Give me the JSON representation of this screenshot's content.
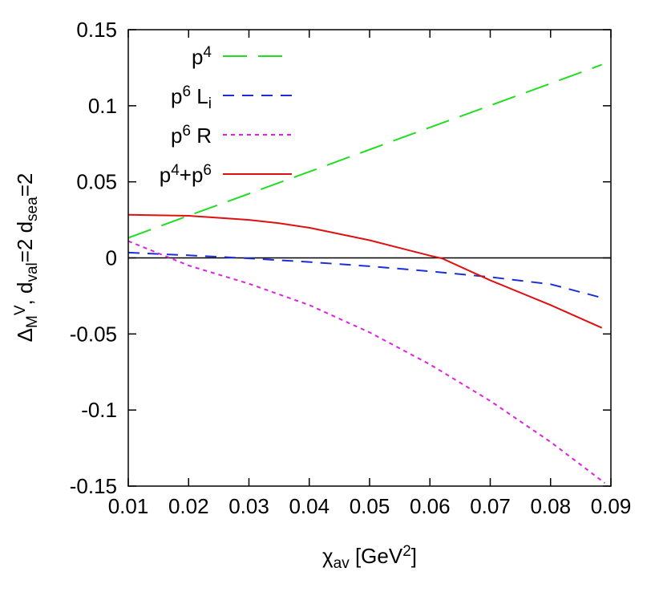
{
  "chart_data": {
    "type": "line",
    "xlabel": {
      "base": "χ",
      "sub": "av",
      "rest": " [GeV",
      "sup": "2",
      "end": "]"
    },
    "ylabel": {
      "parts": [
        {
          "t": "Δ",
          "s": ""
        },
        {
          "t": "M",
          "s": "sub"
        },
        {
          "t": "V",
          "s": "sup"
        },
        {
          "t": ", d",
          "s": ""
        },
        {
          "t": "val",
          "s": "sub"
        },
        {
          "t": "=2 d",
          "s": ""
        },
        {
          "t": "sea",
          "s": "sub"
        },
        {
          "t": "=2",
          "s": ""
        }
      ]
    },
    "xlim": [
      0.01,
      0.09
    ],
    "ylim": [
      -0.15,
      0.15
    ],
    "xticks": [
      "0.01",
      "0.02",
      "0.03",
      "0.04",
      "0.05",
      "0.06",
      "0.07",
      "0.08",
      "0.09"
    ],
    "yticks": [
      "0.15",
      "0.1",
      "0.05",
      "0",
      "-0.05",
      "-0.1",
      "-0.15"
    ],
    "zero_line": true,
    "grid": false,
    "legend_position": "top-left",
    "series": [
      {
        "name": [
          {
            "t": "p",
            "s": ""
          },
          {
            "t": "4",
            "s": "sup"
          }
        ],
        "color": "#22dd22",
        "dash": "long",
        "x": [
          0.01,
          0.02,
          0.03,
          0.04,
          0.05,
          0.06,
          0.07,
          0.08,
          0.0885
        ],
        "y": [
          0.0132,
          0.0278,
          0.0422,
          0.0566,
          0.0712,
          0.0858,
          0.1002,
          0.1146,
          0.127
        ]
      },
      {
        "name": [
          {
            "t": "p",
            "s": ""
          },
          {
            "t": "6",
            "s": "sup"
          },
          {
            "t": " L",
            "s": ""
          },
          {
            "t": "i",
            "s": "sub"
          }
        ],
        "color": "#1a2fd6",
        "dash": "medium",
        "x": [
          0.01,
          0.02,
          0.03,
          0.04,
          0.05,
          0.06,
          0.07,
          0.08,
          0.0885
        ],
        "y": [
          0.0035,
          0.0017,
          -0.0003,
          -0.0027,
          -0.0055,
          -0.0088,
          -0.0126,
          -0.0173,
          -0.0262
        ]
      },
      {
        "name": [
          {
            "t": "p",
            "s": ""
          },
          {
            "t": "6",
            "s": "sup"
          },
          {
            "t": " R",
            "s": ""
          }
        ],
        "color": "#e020e0",
        "dash": "short",
        "x": [
          0.01,
          0.02,
          0.03,
          0.04,
          0.05,
          0.06,
          0.07,
          0.08,
          0.089
        ],
        "y": [
          0.011,
          -0.005,
          -0.017,
          -0.031,
          -0.049,
          -0.07,
          -0.094,
          -0.121,
          -0.148
        ]
      },
      {
        "name": [
          {
            "t": "p",
            "s": ""
          },
          {
            "t": "4",
            "s": "sup"
          },
          {
            "t": "+p",
            "s": ""
          },
          {
            "t": "6",
            "s": "sup"
          }
        ],
        "color": "#e01010",
        "dash": "solid",
        "x": [
          0.01,
          0.02,
          0.03,
          0.035,
          0.04,
          0.05,
          0.06,
          0.062,
          0.07,
          0.08,
          0.0885
        ],
        "y": [
          0.0283,
          0.0277,
          0.025,
          0.0228,
          0.0198,
          0.0116,
          0.0015,
          -0.0003,
          -0.0147,
          -0.031,
          -0.046
        ]
      }
    ]
  }
}
